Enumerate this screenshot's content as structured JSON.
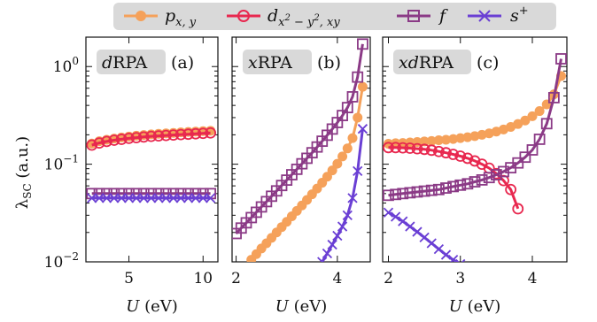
{
  "legend": {
    "items": [
      {
        "label": "p_{x,y}",
        "series": "p"
      },
      {
        "label": "d_{x^2-y^2,xy}",
        "series": "d"
      },
      {
        "label": "f",
        "series": "f"
      },
      {
        "label": "s^+",
        "series": "s"
      }
    ]
  },
  "ylabel": "λ_SC (a.u.)",
  "colors": {
    "p": "#f5a15a",
    "d": "#e8284f",
    "f": "#8b3a86",
    "s": "#6a3fd4",
    "panel_badge": "#d9d9d9",
    "legend_bg": "#d9d9d9"
  },
  "chart_data": [
    {
      "type": "line",
      "panel_label_method": "dRPA",
      "panel_label_letter": "(a)",
      "xlabel": "U (eV)",
      "yscale": "log",
      "ylim": [
        0.01,
        2
      ],
      "xlim": [
        2.1,
        11.0
      ],
      "xticks": [
        5,
        10
      ],
      "yticks": [
        0.01,
        0.1,
        1
      ],
      "ytick_labels": [
        "10^-2",
        "10^-1",
        "10^0"
      ],
      "series": [
        {
          "key": "p",
          "marker": "circle-filled",
          "x": [
            2.5,
            3.0,
            3.5,
            4.0,
            4.5,
            5.0,
            5.5,
            6.0,
            6.5,
            7.0,
            7.5,
            8.0,
            8.5,
            9.0,
            9.5,
            10.0,
            10.5
          ],
          "y": [
            0.163,
            0.172,
            0.178,
            0.183,
            0.188,
            0.192,
            0.196,
            0.199,
            0.202,
            0.205,
            0.207,
            0.209,
            0.212,
            0.214,
            0.216,
            0.218,
            0.22
          ]
        },
        {
          "key": "d",
          "marker": "circle-open",
          "x": [
            2.5,
            3.0,
            3.5,
            4.0,
            4.5,
            5.0,
            5.5,
            6.0,
            6.5,
            7.0,
            7.5,
            8.0,
            8.5,
            9.0,
            9.5,
            10.0,
            10.5
          ],
          "y": [
            0.157,
            0.165,
            0.171,
            0.176,
            0.18,
            0.184,
            0.187,
            0.19,
            0.193,
            0.195,
            0.197,
            0.199,
            0.201,
            0.203,
            0.205,
            0.207,
            0.209
          ]
        },
        {
          "key": "f",
          "marker": "square-open",
          "x": [
            2.5,
            3.0,
            3.5,
            4.0,
            4.5,
            5.0,
            5.5,
            6.0,
            6.5,
            7.0,
            7.5,
            8.0,
            8.5,
            9.0,
            9.5,
            10.0,
            10.5
          ],
          "y": [
            0.05,
            0.05,
            0.05,
            0.05,
            0.05,
            0.05,
            0.05,
            0.05,
            0.05,
            0.05,
            0.05,
            0.05,
            0.05,
            0.05,
            0.05,
            0.05,
            0.05
          ]
        },
        {
          "key": "s",
          "marker": "x",
          "x": [
            2.5,
            3.0,
            3.5,
            4.0,
            4.5,
            5.0,
            5.5,
            6.0,
            6.5,
            7.0,
            7.5,
            8.0,
            8.5,
            9.0,
            9.5,
            10.0,
            10.5
          ],
          "y": [
            0.045,
            0.045,
            0.045,
            0.045,
            0.045,
            0.045,
            0.045,
            0.045,
            0.045,
            0.045,
            0.045,
            0.045,
            0.045,
            0.045,
            0.045,
            0.045,
            0.045
          ]
        }
      ]
    },
    {
      "type": "line",
      "panel_label_method": "xRPA",
      "panel_label_letter": "(b)",
      "xlabel": "U (eV)",
      "yscale": "log",
      "ylim": [
        0.01,
        2
      ],
      "xlim": [
        1.92,
        4.65
      ],
      "xticks": [
        2,
        4
      ],
      "yticks": [
        0.01,
        0.1,
        1
      ],
      "series": [
        {
          "key": "p",
          "marker": "circle-filled",
          "x": [
            2.3,
            2.4,
            2.5,
            2.6,
            2.7,
            2.8,
            2.9,
            3.0,
            3.1,
            3.2,
            3.3,
            3.4,
            3.5,
            3.6,
            3.7,
            3.8,
            3.9,
            4.0,
            4.1,
            4.2,
            4.3,
            4.4,
            4.5
          ],
          "y": [
            0.0105,
            0.012,
            0.0137,
            0.0155,
            0.0176,
            0.02,
            0.0227,
            0.0257,
            0.0293,
            0.0333,
            0.0378,
            0.0431,
            0.0492,
            0.0563,
            0.0646,
            0.0745,
            0.0864,
            0.101,
            0.12,
            0.145,
            0.185,
            0.3,
            0.62
          ]
        },
        {
          "key": "f",
          "marker": "square-open",
          "x": [
            2.0,
            2.1,
            2.2,
            2.3,
            2.4,
            2.5,
            2.6,
            2.7,
            2.8,
            2.9,
            3.0,
            3.1,
            3.2,
            3.3,
            3.4,
            3.5,
            3.6,
            3.7,
            3.8,
            3.9,
            4.0,
            4.1,
            4.2,
            4.3,
            4.4,
            4.5
          ],
          "y": [
            0.0195,
            0.0222,
            0.0251,
            0.0284,
            0.0322,
            0.0365,
            0.0414,
            0.047,
            0.0533,
            0.0605,
            0.0687,
            0.078,
            0.0887,
            0.101,
            0.115,
            0.131,
            0.15,
            0.172,
            0.198,
            0.229,
            0.267,
            0.315,
            0.38,
            0.49,
            0.78,
            1.7
          ]
        },
        {
          "key": "s",
          "marker": "x",
          "x": [
            3.7,
            3.8,
            3.9,
            4.0,
            4.1,
            4.2,
            4.3,
            4.4,
            4.5
          ],
          "y": [
            0.01,
            0.0122,
            0.015,
            0.0185,
            0.023,
            0.03,
            0.045,
            0.085,
            0.23
          ]
        }
      ]
    },
    {
      "type": "line",
      "panel_label_method": "xdRPA",
      "panel_label_letter": "(c)",
      "xlabel": "U (eV)",
      "yscale": "log",
      "ylim": [
        0.01,
        2
      ],
      "xlim": [
        1.92,
        4.48
      ],
      "xticks": [
        2,
        3,
        4
      ],
      "yticks": [
        0.01,
        0.1,
        1
      ],
      "series": [
        {
          "key": "p",
          "marker": "circle-filled",
          "x": [
            2.0,
            2.1,
            2.2,
            2.3,
            2.4,
            2.5,
            2.6,
            2.7,
            2.8,
            2.9,
            3.0,
            3.1,
            3.2,
            3.3,
            3.4,
            3.5,
            3.6,
            3.7,
            3.8,
            3.9,
            4.0,
            4.1,
            4.2,
            4.3,
            4.4
          ],
          "y": [
            0.162,
            0.164,
            0.165,
            0.167,
            0.169,
            0.171,
            0.173,
            0.176,
            0.178,
            0.181,
            0.185,
            0.189,
            0.194,
            0.2,
            0.207,
            0.216,
            0.227,
            0.241,
            0.258,
            0.28,
            0.31,
            0.35,
            0.41,
            0.52,
            0.8
          ]
        },
        {
          "key": "d",
          "marker": "circle-open",
          "x": [
            2.0,
            2.1,
            2.2,
            2.3,
            2.4,
            2.5,
            2.6,
            2.7,
            2.8,
            2.9,
            3.0,
            3.1,
            3.2,
            3.3,
            3.4,
            3.5,
            3.6,
            3.7,
            3.8
          ],
          "y": [
            0.148,
            0.148,
            0.147,
            0.146,
            0.144,
            0.142,
            0.139,
            0.135,
            0.131,
            0.126,
            0.121,
            0.115,
            0.108,
            0.1,
            0.091,
            0.08,
            0.068,
            0.055,
            0.035
          ]
        },
        {
          "key": "f",
          "marker": "square-open",
          "x": [
            2.0,
            2.1,
            2.2,
            2.3,
            2.4,
            2.5,
            2.6,
            2.7,
            2.8,
            2.9,
            3.0,
            3.1,
            3.2,
            3.3,
            3.4,
            3.5,
            3.6,
            3.7,
            3.8,
            3.9,
            4.0,
            4.1,
            4.2,
            4.3,
            4.4
          ],
          "y": [
            0.048,
            0.049,
            0.05,
            0.051,
            0.052,
            0.053,
            0.054,
            0.055,
            0.057,
            0.059,
            0.061,
            0.063,
            0.066,
            0.069,
            0.073,
            0.078,
            0.084,
            0.092,
            0.103,
            0.118,
            0.14,
            0.18,
            0.26,
            0.48,
            1.2
          ]
        },
        {
          "key": "s",
          "marker": "x",
          "x": [
            2.0,
            2.1,
            2.2,
            2.3,
            2.4,
            2.5,
            2.6,
            2.7,
            2.8,
            2.9,
            3.0
          ],
          "y": [
            0.032,
            0.029,
            0.026,
            0.023,
            0.0203,
            0.0178,
            0.0155,
            0.0135,
            0.0118,
            0.0105,
            0.0095
          ]
        }
      ]
    }
  ]
}
